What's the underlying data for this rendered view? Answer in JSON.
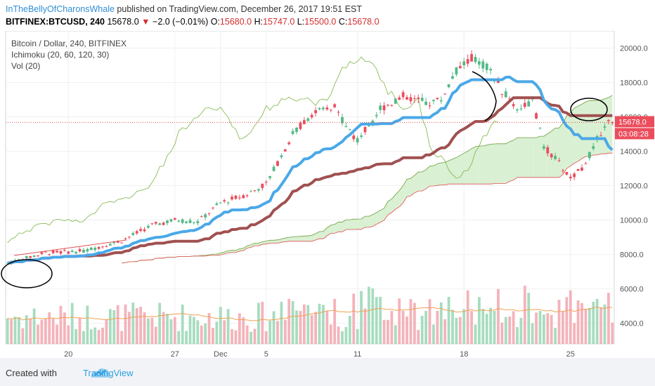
{
  "header": {
    "author": "InTheBellyOfCharonsWhale",
    "published_text": " published on TradingView.com, December 26, 2017 19:51 EST",
    "symbol": "BITFINEX:BTCUSD, 240",
    "last_price": "15678.0",
    "change_arrow": "▼",
    "change": "−2.0 (−0.01%)",
    "open_label": "O:",
    "open": "15680.0",
    "high_label": "H:",
    "high": "15747.0",
    "low_label": "L:",
    "low": "15500.0",
    "close_label": "C:",
    "close": "15678.0"
  },
  "legend": {
    "title": "Bitcoin / Dollar, 240, BITFINEX",
    "ichimoku": "Ichimoku (20, 60, 120, 30)",
    "vol": "Vol (20)"
  },
  "price_tag": "15678.0",
  "countdown_tag": "03:08:28",
  "footer": {
    "created_with": "Created with",
    "brand": "TradingView"
  },
  "colors": {
    "up": "#53b987",
    "down": "#eb4d5c",
    "conversion": "#4aa8e8",
    "base": "#a05050",
    "lagging": "#7cb342",
    "cloud_green": "#d9f0d3",
    "cloud_red": "#fbd9d9",
    "span_a": "#6a9f3a",
    "span_b": "#e05050",
    "vol_ma": "#f0a050"
  },
  "chart_data": {
    "type": "candlestick",
    "ylim": [
      2800,
      21000
    ],
    "y_ticks": [
      "4000.0",
      "6000.0",
      "8000.0",
      "10000.0",
      "12000.0",
      "14000.0",
      "16000.0",
      "18000.0",
      "20000.0"
    ],
    "x_ticks": [
      {
        "label": "20",
        "t": 16
      },
      {
        "label": "27",
        "t": 44
      },
      {
        "label": "Dec",
        "t": 56
      },
      {
        "label": "5",
        "t": 68
      },
      {
        "label": "11",
        "t": 92
      },
      {
        "label": "18",
        "t": 120
      },
      {
        "label": "25",
        "t": 148
      }
    ],
    "last_price": 15678,
    "candles": [],
    "volume_ylim": [
      0,
      1.0
    ],
    "annotations": []
  }
}
